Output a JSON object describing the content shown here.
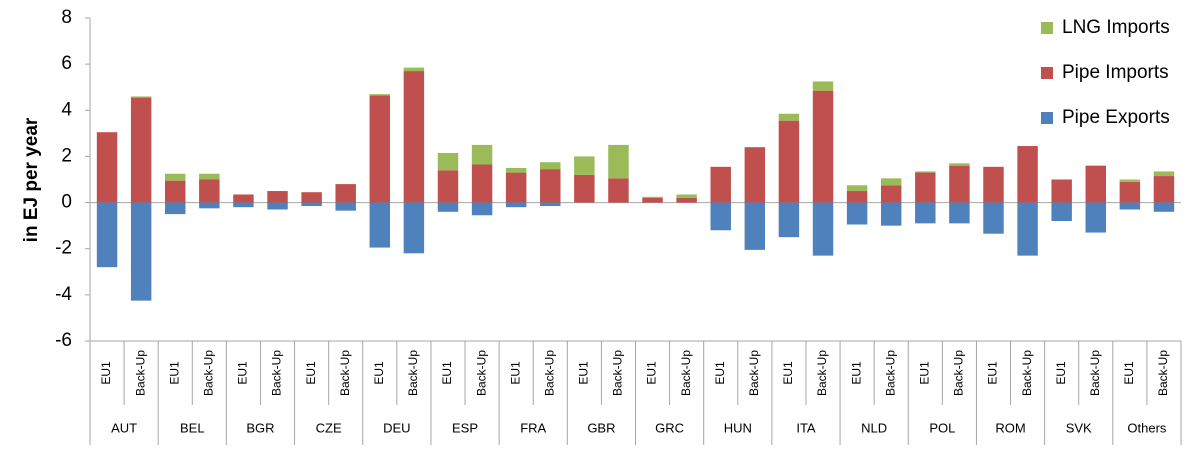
{
  "chart_data": {
    "type": "stacked-bar",
    "y_label": "in EJ per year",
    "categories": [
      "EU1",
      "Back-Up",
      "EU1",
      "Back-Up",
      "EU1",
      "Back-Up",
      "EU1",
      "Back-Up",
      "EU1",
      "Back-Up",
      "EU1",
      "Back-Up",
      "EU1",
      "Back-Up",
      "EU1",
      "Back-Up",
      "EU1",
      "Back-Up",
      "EU1",
      "Back-Up",
      "EU1",
      "Back-Up",
      "EU1",
      "Back-Up",
      "EU1",
      "Back-Up",
      "EU1",
      "Back-Up",
      "EU1",
      "Back-Up",
      "EU1",
      "Back-Up"
    ],
    "category_groups": [
      "AUT",
      "BEL",
      "BGR",
      "CZE",
      "DEU",
      "ESP",
      "FRA",
      "GBR",
      "GRC",
      "HUN",
      "ITA",
      "NLD",
      "POL",
      "ROM",
      "SVK",
      "Others"
    ],
    "series": [
      {
        "name": "Pipe Imports",
        "color": "#c0504d",
        "values": [
          3.05,
          4.55,
          0.95,
          1.0,
          0.35,
          0.5,
          0.45,
          0.8,
          4.65,
          5.7,
          1.4,
          1.65,
          1.3,
          1.45,
          1.2,
          1.05,
          0.2,
          0.2,
          1.55,
          2.4,
          3.55,
          4.85,
          0.5,
          0.75,
          1.3,
          1.6,
          1.55,
          2.45,
          1.0,
          1.6,
          0.9,
          1.15
        ]
      },
      {
        "name": "LNG Imports",
        "color": "#9bbb59",
        "values": [
          0,
          0.05,
          0.3,
          0.25,
          0,
          0,
          0,
          0,
          0.05,
          0.15,
          0.75,
          0.85,
          0.2,
          0.3,
          0.8,
          1.45,
          0.05,
          0.15,
          0,
          0,
          0.3,
          0.4,
          0.25,
          0.3,
          0.05,
          0.1,
          0,
          0,
          0,
          0,
          0.1,
          0.2
        ]
      },
      {
        "name": "Pipe Exports",
        "color": "#4f81bd",
        "values": [
          -2.8,
          -4.25,
          -0.5,
          -0.25,
          -0.2,
          -0.3,
          -0.15,
          -0.35,
          -1.95,
          -2.2,
          -0.4,
          -0.55,
          -0.2,
          -0.15,
          0,
          0,
          0,
          0,
          -1.2,
          -2.05,
          -1.5,
          -2.3,
          -0.95,
          -1.0,
          -0.9,
          -0.9,
          -1.35,
          -2.3,
          -0.8,
          -1.3,
          -0.3,
          -0.4
        ]
      }
    ],
    "legend_order": [
      1,
      0,
      2
    ],
    "ylim": [
      -6,
      8
    ],
    "yticks": [
      -6,
      -4,
      -2,
      0,
      2,
      4,
      6,
      8
    ]
  }
}
